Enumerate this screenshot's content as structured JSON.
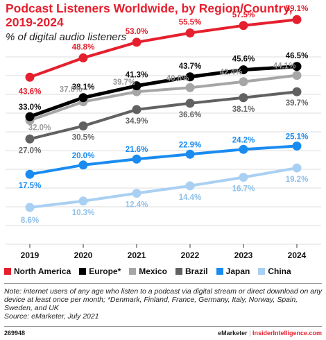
{
  "header": {
    "title": "Podcast Listeners Worldwide, by Region/Country, 2019-2024",
    "subtitle": "% of digital audio listeners"
  },
  "chart_data": {
    "type": "line",
    "x": [
      "2019",
      "2020",
      "2021",
      "2022",
      "2023",
      "2024"
    ],
    "ylim": [
      0,
      65
    ],
    "grid": true,
    "legend_position": "bottom",
    "series": [
      {
        "name": "North America",
        "color": "#e5202e",
        "values": [
          43.6,
          48.8,
          53.0,
          55.5,
          57.5,
          59.1
        ],
        "labels": [
          "43.6%",
          "48.8%",
          "53.0%",
          "55.5%",
          "57.5%",
          "59.1%"
        ]
      },
      {
        "name": "Europe*",
        "color": "#000000",
        "values": [
          33.0,
          38.1,
          41.3,
          43.7,
          45.6,
          46.5
        ],
        "labels": [
          "33.0%",
          "38.1%",
          "41.3%",
          "43.7%",
          "45.6%",
          "46.5%"
        ]
      },
      {
        "name": "Mexico",
        "color": "#a6a6a6",
        "values": [
          32.0,
          37.0,
          39.7,
          40.8,
          42.4,
          44.1
        ],
        "labels": [
          "32.0%",
          "37.0%",
          "39.7%",
          "40.8%",
          "42.4%",
          "44.1%"
        ]
      },
      {
        "name": "Brazil",
        "color": "#616161",
        "values": [
          27.0,
          30.5,
          34.9,
          36.6,
          38.1,
          39.7
        ],
        "labels": [
          "27.0%",
          "30.5%",
          "34.9%",
          "36.6%",
          "38.1%",
          "39.7%"
        ]
      },
      {
        "name": "Japan",
        "color": "#1a8cf0",
        "values": [
          17.5,
          20.0,
          21.6,
          22.9,
          24.2,
          25.1
        ],
        "labels": [
          "17.5%",
          "20.0%",
          "21.6%",
          "22.9%",
          "24.2%",
          "25.1%"
        ]
      },
      {
        "name": "China",
        "color": "#a9d0f2",
        "values": [
          8.6,
          10.3,
          12.4,
          14.4,
          16.7,
          19.2
        ],
        "labels": [
          "8.6%",
          "10.3%",
          "12.4%",
          "14.4%",
          "16.7%",
          "19.2%"
        ]
      }
    ]
  },
  "note": "Note: internet users of any age who listen to a podcast via digital stream or direct download on any device at least once per month; *Denmark, Finland, France, Germany, Italy, Norway, Spain, Sweden, and UK",
  "source": "Source: eMarketer, July 2021",
  "footer": {
    "chart_id": "269948",
    "brand_left": "eMarketer",
    "separator": "|",
    "brand_right": "InsiderIntelligence.com"
  }
}
